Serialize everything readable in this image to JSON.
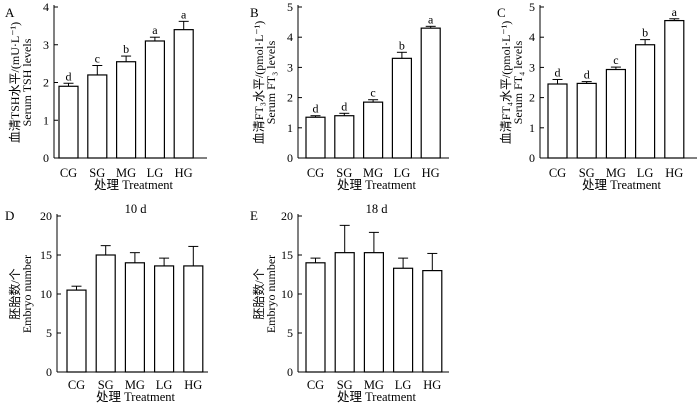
{
  "chart_data": [
    {
      "type": "bar",
      "panel": "A",
      "categories": [
        "CG",
        "SG",
        "MG",
        "LG",
        "HG"
      ],
      "values": [
        1.9,
        2.2,
        2.55,
        3.1,
        3.4
      ],
      "errors": [
        0.08,
        0.25,
        0.15,
        0.1,
        0.22
      ],
      "letters": [
        "d",
        "c",
        "b",
        "a",
        "a"
      ],
      "title": "",
      "xlabel": "处理 Treatment",
      "ylabel_cn": "血清TSH水平/(mU·L⁻¹)",
      "ylabel_en": "Serum TSH levels",
      "ylim": [
        0,
        4
      ],
      "yticks": [
        "0",
        "1",
        "2",
        "3",
        "4"
      ]
    },
    {
      "type": "bar",
      "panel": "B",
      "categories": [
        "CG",
        "SG",
        "MG",
        "LG",
        "HG"
      ],
      "values": [
        1.35,
        1.4,
        1.85,
        3.3,
        4.3
      ],
      "errors": [
        0.05,
        0.08,
        0.08,
        0.2,
        0.06
      ],
      "letters": [
        "d",
        "d",
        "c",
        "b",
        "a"
      ],
      "title": "",
      "xlabel": "处理 Treatment",
      "ylabel_cn": "血清FT₃水平/(pmol·L⁻¹)",
      "ylabel_en": "Serum FT₃ levels",
      "ylim": [
        0,
        5
      ],
      "yticks": [
        "0",
        "1",
        "2",
        "3",
        "4",
        "5"
      ]
    },
    {
      "type": "bar",
      "panel": "C",
      "categories": [
        "CG",
        "SG",
        "MG",
        "LG",
        "HG"
      ],
      "values": [
        2.45,
        2.47,
        2.93,
        3.75,
        4.55
      ],
      "errors": [
        0.15,
        0.06,
        0.08,
        0.17,
        0.06
      ],
      "letters": [
        "d",
        "d",
        "c",
        "b",
        "a"
      ],
      "title": "",
      "xlabel": "处理 Treatment",
      "ylabel_cn": "血清FT₄水平/(pmol·L⁻¹)",
      "ylabel_en": "Serum FT₄ levels",
      "ylim": [
        0,
        5
      ],
      "yticks": [
        "0",
        "1",
        "2",
        "3",
        "4",
        "5"
      ]
    },
    {
      "type": "bar",
      "panel": "D",
      "categories": [
        "CG",
        "SG",
        "MG",
        "LG",
        "HG"
      ],
      "values": [
        10.5,
        15.0,
        14.0,
        13.6,
        13.6
      ],
      "errors": [
        0.5,
        1.2,
        1.3,
        1.0,
        2.5
      ],
      "letters": [
        "",
        "",
        "",
        "",
        ""
      ],
      "title": "10 d",
      "xlabel": "处理 Treatment",
      "ylabel_cn": "胚胎数/个",
      "ylabel_en": "Embryo number",
      "ylim": [
        0,
        20
      ],
      "yticks": [
        "0",
        "5",
        "10",
        "15",
        "20"
      ]
    },
    {
      "type": "bar",
      "panel": "E",
      "categories": [
        "CG",
        "SG",
        "MG",
        "LG",
        "HG"
      ],
      "values": [
        14.0,
        15.3,
        15.3,
        13.3,
        13.0
      ],
      "errors": [
        0.6,
        3.5,
        2.6,
        1.3,
        2.2
      ],
      "letters": [
        "",
        "",
        "",
        "",
        ""
      ],
      "title": "18 d",
      "xlabel": "处理 Treatment",
      "ylabel_cn": "胚胎数/个",
      "ylabel_en": "Embryo number",
      "ylim": [
        0,
        20
      ],
      "yticks": [
        "0",
        "5",
        "10",
        "15",
        "20"
      ]
    }
  ]
}
